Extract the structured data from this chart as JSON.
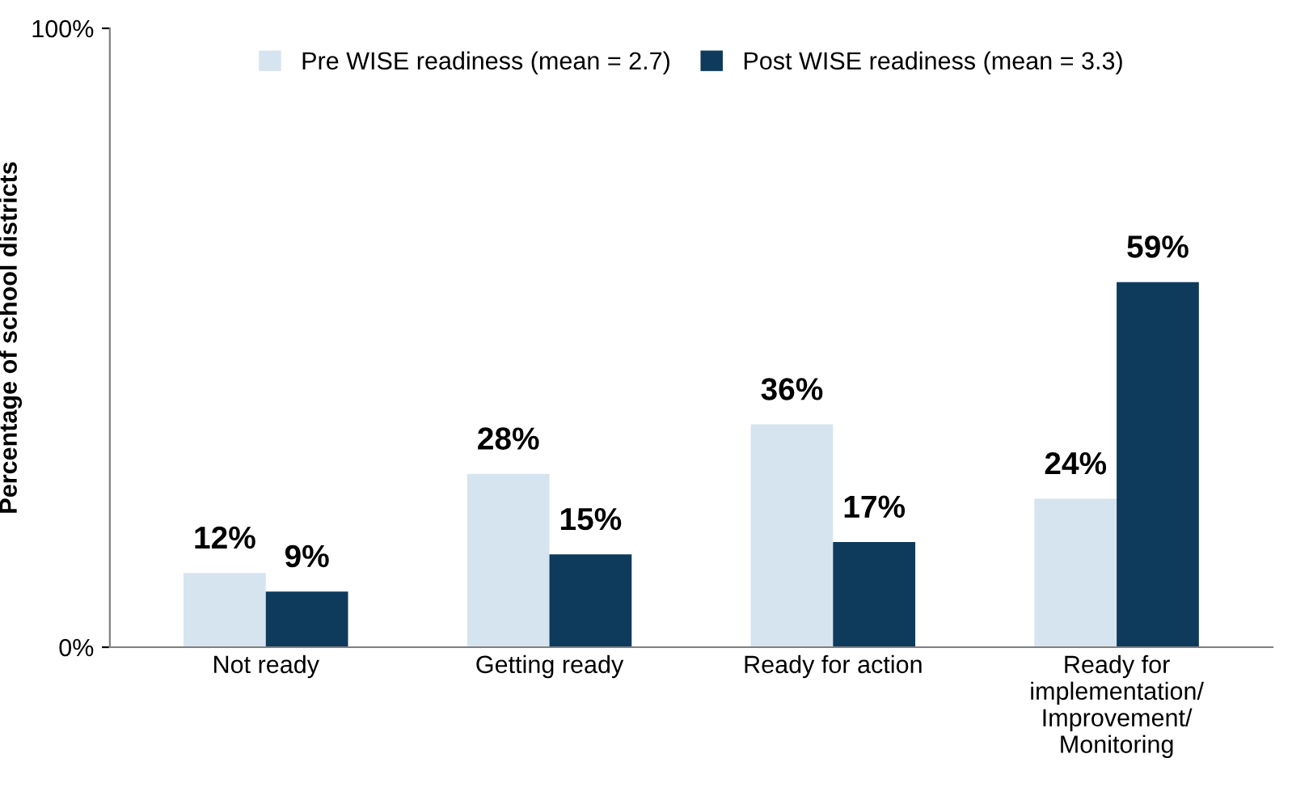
{
  "chart_data": {
    "type": "bar",
    "ylabel": "Percentage of school districts",
    "categories": [
      "Not ready",
      "Getting ready",
      "Ready for action",
      "Ready for\nimplementation/\nImprovement/\nMonitoring"
    ],
    "series": [
      {
        "name": "Pre WISE readiness (mean = 2.7)",
        "color": "#d6e4f0",
        "values": [
          12,
          28,
          36,
          24
        ],
        "value_labels": [
          "12%",
          "28%",
          "36%",
          "24%"
        ]
      },
      {
        "name": "Post WISE readiness (mean = 3.3)",
        "color": "#0e3a5c",
        "values": [
          9,
          15,
          17,
          59
        ],
        "value_labels": [
          "9%",
          "15%",
          "17%",
          "59%"
        ]
      }
    ],
    "ylim": [
      0,
      100
    ],
    "yticks": [
      {
        "value": 0,
        "label": "0%"
      },
      {
        "value": 100,
        "label": "100%"
      }
    ],
    "grid": false,
    "legend": "top"
  }
}
